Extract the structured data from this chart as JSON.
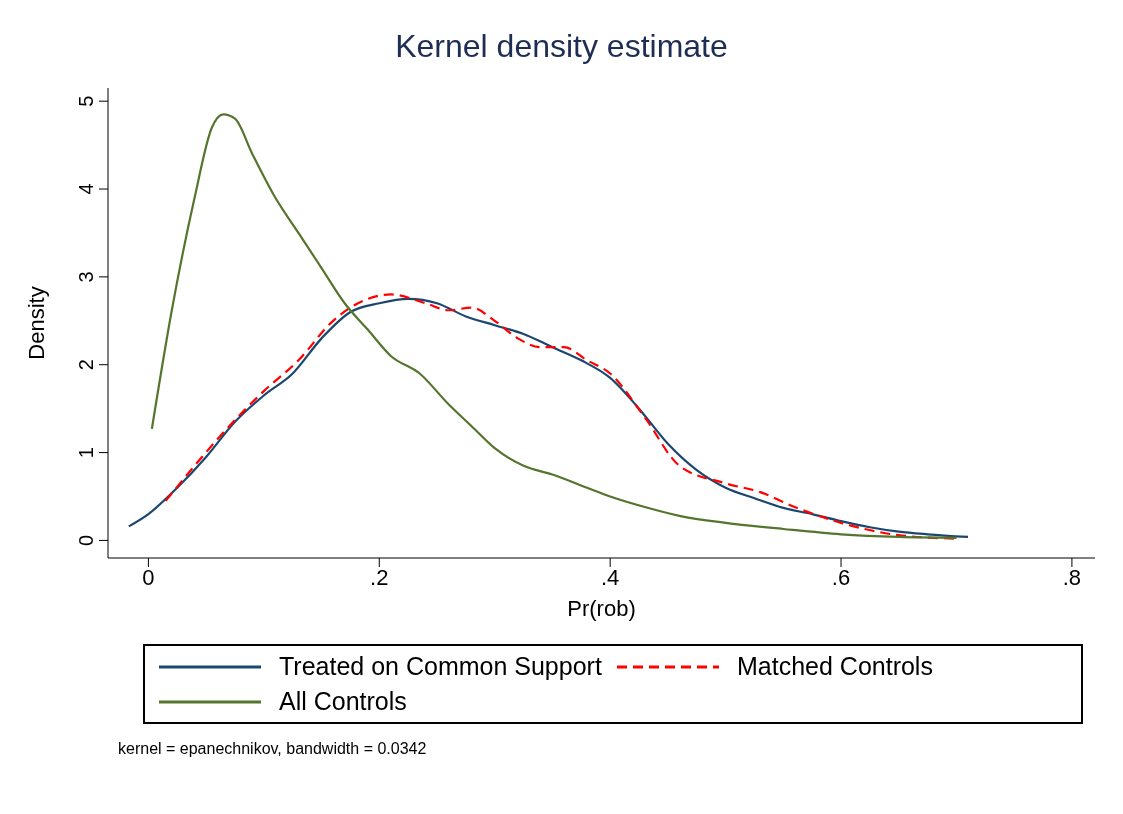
{
  "chart_data": {
    "type": "line",
    "title": "Kernel density estimate",
    "xlabel": "Pr(rob)",
    "ylabel": "Density",
    "xlim": [
      -0.035,
      0.82
    ],
    "xticks": [
      0,
      {
        "value": 0.2,
        "label": ".2"
      },
      {
        "value": 0.4,
        "label": ".4"
      },
      {
        "value": 0.6,
        "label": ".6"
      },
      {
        "value": 0.8,
        "label": ".8"
      }
    ],
    "ylim": [
      -0.2,
      5.15
    ],
    "yticks": [
      0,
      1,
      2,
      3,
      4,
      5
    ],
    "grid": false,
    "legend": "bottom",
    "marker": "none",
    "annotations": [
      "kernel = epanechnikov, bandwidth = 0.0342"
    ],
    "series": [
      {
        "name": "Treated on Common Support",
        "color": "#1a476f",
        "line_style": "solid",
        "x": [
          -0.017,
          0,
          0.025,
          0.05,
          0.075,
          0.1,
          0.125,
          0.15,
          0.175,
          0.2,
          0.225,
          0.25,
          0.275,
          0.3,
          0.325,
          0.35,
          0.375,
          0.4,
          0.425,
          0.45,
          0.475,
          0.5,
          0.525,
          0.55,
          0.575,
          0.6,
          0.625,
          0.65,
          0.675,
          0.71
        ],
        "values": [
          0.16,
          0.3,
          0.6,
          0.95,
          1.35,
          1.65,
          1.9,
          2.3,
          2.6,
          2.7,
          2.75,
          2.7,
          2.55,
          2.45,
          2.35,
          2.2,
          2.05,
          1.85,
          1.5,
          1.1,
          0.8,
          0.6,
          0.48,
          0.37,
          0.3,
          0.22,
          0.15,
          0.1,
          0.07,
          0.04
        ]
      },
      {
        "name": "Matched Controls",
        "color": "#ff0000",
        "line_style": "dashed",
        "x": [
          0.015,
          0.04,
          0.07,
          0.1,
          0.13,
          0.16,
          0.19,
          0.21,
          0.24,
          0.26,
          0.28,
          0.3,
          0.32,
          0.34,
          0.36,
          0.38,
          0.4,
          0.43,
          0.46,
          0.5,
          0.53,
          0.56,
          0.6,
          0.65,
          0.7
        ],
        "values": [
          0.45,
          0.85,
          1.3,
          1.7,
          2.05,
          2.5,
          2.75,
          2.8,
          2.7,
          2.62,
          2.65,
          2.5,
          2.3,
          2.2,
          2.2,
          2.05,
          1.9,
          1.4,
          0.85,
          0.65,
          0.55,
          0.38,
          0.2,
          0.06,
          0.02
        ]
      },
      {
        "name": "All Controls",
        "color": "#55752f",
        "line_style": "solid",
        "x": [
          0.003,
          0.02,
          0.04,
          0.055,
          0.065,
          0.075,
          0.09,
          0.11,
          0.13,
          0.15,
          0.17,
          0.19,
          0.21,
          0.235,
          0.26,
          0.28,
          0.3,
          0.325,
          0.35,
          0.38,
          0.4,
          0.43,
          0.46,
          0.5,
          0.55,
          0.6,
          0.65,
          0.7
        ],
        "values": [
          1.27,
          2.6,
          3.9,
          4.7,
          4.85,
          4.8,
          4.4,
          3.9,
          3.5,
          3.1,
          2.7,
          2.4,
          2.1,
          1.9,
          1.55,
          1.3,
          1.05,
          0.85,
          0.75,
          0.6,
          0.5,
          0.38,
          0.28,
          0.2,
          0.13,
          0.07,
          0.04,
          0.03
        ]
      }
    ]
  }
}
